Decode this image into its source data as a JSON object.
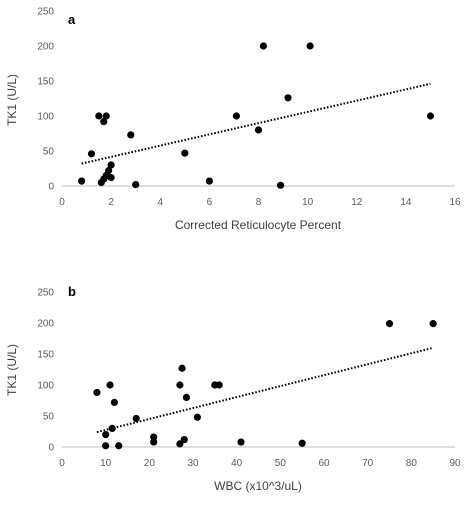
{
  "chart_data": [
    {
      "type": "scatter",
      "panel_label": "a",
      "xlabel": "Corrected Reticulocyte Percent",
      "ylabel": "TK1 (U/L)",
      "xlim": [
        0,
        16
      ],
      "ylim": [
        0,
        250
      ],
      "xticks": [
        0,
        2,
        4,
        6,
        8,
        10,
        12,
        14,
        16
      ],
      "yticks": [
        0,
        50,
        100,
        150,
        200,
        250
      ],
      "grid": false,
      "legend": "none",
      "trendline": {
        "style": "dotted",
        "x": [
          0.8,
          15.0
        ],
        "y": [
          32,
          146
        ]
      },
      "points": [
        {
          "x": 0.8,
          "y": 7
        },
        {
          "x": 1.2,
          "y": 46
        },
        {
          "x": 1.5,
          "y": 100
        },
        {
          "x": 1.6,
          "y": 5
        },
        {
          "x": 1.7,
          "y": 92
        },
        {
          "x": 1.7,
          "y": 10
        },
        {
          "x": 1.8,
          "y": 100
        },
        {
          "x": 1.8,
          "y": 15
        },
        {
          "x": 1.9,
          "y": 22
        },
        {
          "x": 2.0,
          "y": 30
        },
        {
          "x": 2.0,
          "y": 12
        },
        {
          "x": 2.8,
          "y": 73
        },
        {
          "x": 3.0,
          "y": 2
        },
        {
          "x": 5.0,
          "y": 47
        },
        {
          "x": 6.0,
          "y": 7
        },
        {
          "x": 7.1,
          "y": 100
        },
        {
          "x": 8.0,
          "y": 80
        },
        {
          "x": 8.2,
          "y": 200
        },
        {
          "x": 8.9,
          "y": 1
        },
        {
          "x": 9.2,
          "y": 126
        },
        {
          "x": 10.1,
          "y": 200
        },
        {
          "x": 15.0,
          "y": 100
        }
      ]
    },
    {
      "type": "scatter",
      "panel_label": "b",
      "xlabel": "WBC (x10^3/uL)",
      "ylabel": "TK1 (U/L)",
      "xlim": [
        0,
        90
      ],
      "ylim": [
        0,
        250
      ],
      "xticks": [
        0,
        10,
        20,
        30,
        40,
        50,
        60,
        70,
        80,
        90
      ],
      "yticks": [
        0,
        50,
        100,
        150,
        200,
        250
      ],
      "grid": false,
      "legend": "none",
      "trendline": {
        "style": "dotted",
        "x": [
          8,
          85
        ],
        "y": [
          24,
          160
        ]
      },
      "points": [
        {
          "x": 8,
          "y": 88
        },
        {
          "x": 10,
          "y": 20
        },
        {
          "x": 10,
          "y": 2
        },
        {
          "x": 11,
          "y": 100
        },
        {
          "x": 11.5,
          "y": 30
        },
        {
          "x": 12,
          "y": 72
        },
        {
          "x": 13,
          "y": 2
        },
        {
          "x": 17,
          "y": 46
        },
        {
          "x": 21,
          "y": 8
        },
        {
          "x": 21,
          "y": 16
        },
        {
          "x": 27,
          "y": 5
        },
        {
          "x": 27,
          "y": 100
        },
        {
          "x": 27.5,
          "y": 127
        },
        {
          "x": 28,
          "y": 12
        },
        {
          "x": 28.5,
          "y": 80
        },
        {
          "x": 31,
          "y": 48
        },
        {
          "x": 35,
          "y": 100
        },
        {
          "x": 36,
          "y": 100
        },
        {
          "x": 41,
          "y": 8
        },
        {
          "x": 55,
          "y": 6
        },
        {
          "x": 75,
          "y": 199
        },
        {
          "x": 85,
          "y": 199
        }
      ]
    }
  ]
}
